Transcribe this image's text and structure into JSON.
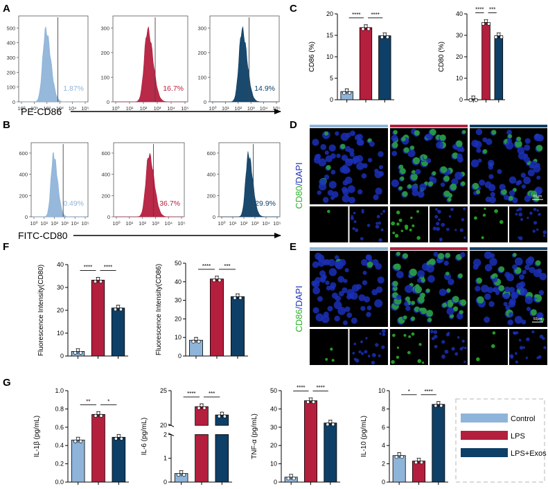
{
  "colors": {
    "control": "#8FB4D9",
    "lps": "#B41F3E",
    "exos": "#0E3F66",
    "dapi": "#1a2fb5",
    "cd": "#2db52d"
  },
  "panel_labels": {
    "A": "A",
    "B": "B",
    "C": "C",
    "D": "D",
    "E": "E",
    "F": "F",
    "G": "G"
  },
  "flow": {
    "A": {
      "axis_label": "PE-CD86",
      "histograms": [
        {
          "group": "control",
          "percent": "1.87%",
          "ymax": 500,
          "yticks": [
            "0",
            "100",
            "200",
            "300",
            "400",
            "500"
          ],
          "peak_log": 1.9
        },
        {
          "group": "lps",
          "percent": "16.7%",
          "ymax": 300,
          "yticks": [
            "0",
            "100",
            "200",
            "300"
          ],
          "peak_log": 2.3
        },
        {
          "group": "exos",
          "percent": "14.9%",
          "ymax": 300,
          "yticks": [
            "0",
            "100",
            "200",
            "300"
          ],
          "peak_log": 2.3
        }
      ]
    },
    "B": {
      "axis_label": "FITC-CD80",
      "histograms": [
        {
          "group": "control",
          "percent": "0.49%",
          "ymax": 600,
          "yticks": [
            "0",
            "200",
            "400",
            "600"
          ],
          "peak_log": 1.9
        },
        {
          "group": "lps",
          "percent": "36.7%",
          "ymax": 600,
          "yticks": [
            "0",
            "200",
            "400",
            "600"
          ],
          "peak_log": 2.5
        },
        {
          "group": "exos",
          "percent": "29.9%",
          "ymax": 600,
          "yticks": [
            "0",
            "200",
            "400",
            "600"
          ],
          "peak_log": 2.4
        }
      ]
    },
    "xtick_labels": [
      "10⁰",
      "10¹",
      "10²",
      "10³",
      "10⁴",
      "10⁵"
    ]
  },
  "scale_bar": "50μm",
  "micrographs": {
    "D": {
      "label_colored": "CD80",
      "label_rest": "/DAPI"
    },
    "E": {
      "label_colored": "CD86",
      "label_rest": "/DAPI"
    }
  },
  "chart_data": [
    {
      "id": "C1",
      "type": "bar",
      "categories": [
        "Control",
        "LPS",
        "LPS+Exos"
      ],
      "values": [
        1.9,
        16.8,
        14.9
      ],
      "ylabel": "CD86 (%)",
      "ylim": [
        0,
        20
      ],
      "yticks": [
        "0",
        "5",
        "10",
        "15",
        "20"
      ],
      "sig": [
        "****",
        "****"
      ]
    },
    {
      "id": "C2",
      "type": "bar",
      "categories": [
        "Control",
        "LPS",
        "LPS+Exos"
      ],
      "values": [
        0.4,
        36.0,
        29.8
      ],
      "ylabel": "CD80 (%)",
      "ylim": [
        0,
        40
      ],
      "yticks": [
        "0",
        "10",
        "20",
        "30",
        "40"
      ],
      "sig": [
        "****",
        "***"
      ]
    },
    {
      "id": "F1",
      "type": "bar",
      "categories": [
        "Control",
        "LPS",
        "LPS+Exos"
      ],
      "values": [
        2.0,
        33.2,
        21.0
      ],
      "ylabel": "Fluorescence Intensity(CD80)",
      "ylim": [
        0,
        40
      ],
      "yticks": [
        "0",
        "10",
        "20",
        "30",
        "40"
      ],
      "sig": [
        "****",
        "****"
      ]
    },
    {
      "id": "F2",
      "type": "bar",
      "categories": [
        "Control",
        "LPS",
        "LPS+Exos"
      ],
      "values": [
        8.5,
        41.5,
        32.0
      ],
      "ylabel": "Fluorescence Intensity(CD86)",
      "ylim": [
        0,
        50
      ],
      "yticks": [
        "0",
        "10",
        "20",
        "30",
        "40",
        "50"
      ],
      "sig": [
        "****",
        "***"
      ]
    },
    {
      "id": "G1",
      "type": "bar",
      "categories": [
        "Control",
        "LPS",
        "LPS+Exos"
      ],
      "values": [
        0.46,
        0.74,
        0.49
      ],
      "ylabel": "IL-1β (pg/mL)",
      "ylim": [
        0,
        1.0
      ],
      "yticks": [
        "0.0",
        "0.2",
        "0.4",
        "0.6",
        "0.8",
        "1.0"
      ],
      "sig": [
        "**",
        "*"
      ]
    },
    {
      "id": "G2",
      "type": "bar",
      "categories": [
        "Control",
        "LPS",
        "LPS+Exos"
      ],
      "values": [
        0.36,
        22.7,
        21.5
      ],
      "ylabel": "IL-6 (pg/mL)",
      "broken_axis": true,
      "yticks": [
        "0",
        "1",
        "2",
        "20",
        "25"
      ],
      "sig": [
        "****",
        "***"
      ]
    },
    {
      "id": "G3",
      "type": "bar",
      "categories": [
        "Control",
        "LPS",
        "LPS+Exos"
      ],
      "values": [
        2.7,
        44.5,
        32.3
      ],
      "ylabel": "TNF-α (pg/mL)",
      "ylim": [
        0,
        50
      ],
      "yticks": [
        "0",
        "10",
        "20",
        "30",
        "40",
        "50"
      ],
      "sig": [
        "****",
        "****"
      ]
    },
    {
      "id": "G4",
      "type": "bar",
      "categories": [
        "Control",
        "LPS",
        "LPS+Exos"
      ],
      "values": [
        2.9,
        2.3,
        8.5
      ],
      "ylabel": "IL-10 (pg/mL)",
      "ylim": [
        0,
        10
      ],
      "yticks": [
        "0",
        "2",
        "4",
        "6",
        "8",
        "10"
      ],
      "sig": [
        "*",
        "****"
      ]
    }
  ],
  "legend": {
    "entries": [
      {
        "group": "control",
        "label": "Control"
      },
      {
        "group": "lps",
        "label": "LPS"
      },
      {
        "group": "exos",
        "label": "LPS+Exos"
      }
    ]
  }
}
